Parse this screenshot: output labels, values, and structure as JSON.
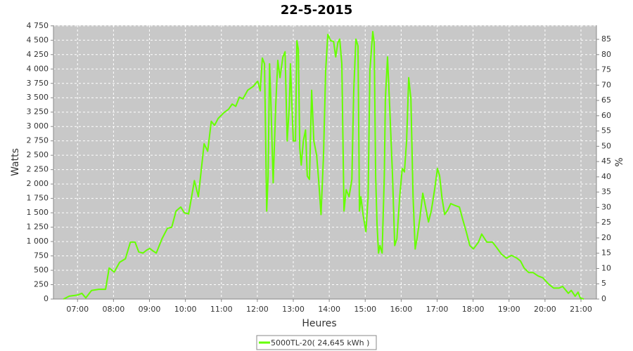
{
  "chart_data": {
    "type": "line",
    "title": "22-5-2015",
    "xlabel": "Heures",
    "ylabel": "Watts",
    "y2label": "%",
    "grid": true,
    "legend": "bottom",
    "xlim": [
      6.33,
      21.43
    ],
    "xticks": [
      {
        "value": 7,
        "label": "07:00"
      },
      {
        "value": 8,
        "label": "08:00"
      },
      {
        "value": 9,
        "label": "09:00"
      },
      {
        "value": 10,
        "label": "10:00"
      },
      {
        "value": 11,
        "label": "11:00"
      },
      {
        "value": 12,
        "label": "12:00"
      },
      {
        "value": 13,
        "label": "13:00"
      },
      {
        "value": 14,
        "label": "14:00"
      },
      {
        "value": 15,
        "label": "15:00"
      },
      {
        "value": 16,
        "label": "16:00"
      },
      {
        "value": 17,
        "label": "17:00"
      },
      {
        "value": 18,
        "label": "18:00"
      },
      {
        "value": 19,
        "label": "19:00"
      },
      {
        "value": 20,
        "label": "20:00"
      },
      {
        "value": 21,
        "label": "21:00"
      }
    ],
    "ylim": [
      0,
      4760
    ],
    "yticks": [
      0,
      250,
      500,
      750,
      {
        "value": 1000,
        "label": "1 000"
      },
      {
        "value": 1250,
        "label": "1 250"
      },
      {
        "value": 1500,
        "label": "1 500"
      },
      {
        "value": 1750,
        "label": "1 750"
      },
      {
        "value": 2000,
        "label": "2 000"
      },
      {
        "value": 2250,
        "label": "2 250"
      },
      {
        "value": 2500,
        "label": "2 500"
      },
      {
        "value": 2750,
        "label": "2 750"
      },
      {
        "value": 3000,
        "label": "3 000"
      },
      {
        "value": 3250,
        "label": "3 250"
      },
      {
        "value": 3500,
        "label": "3 500"
      },
      {
        "value": 3750,
        "label": "3 750"
      },
      {
        "value": 4000,
        "label": "4 000"
      },
      {
        "value": 4250,
        "label": "4 250"
      },
      {
        "value": 4500,
        "label": "4 500"
      },
      {
        "value": 4750,
        "label": "4 750"
      }
    ],
    "y2lim": [
      0,
      89.6
    ],
    "y2ticks": [
      0,
      5,
      10,
      15,
      20,
      25,
      30,
      35,
      40,
      45,
      50,
      55,
      60,
      65,
      70,
      75,
      80,
      85
    ],
    "x": [
      6.61,
      6.77,
      7.0,
      7.12,
      7.23,
      7.39,
      7.59,
      7.78,
      7.88,
      8.02,
      8.17,
      8.33,
      8.47,
      8.6,
      8.7,
      8.82,
      8.92,
      9.01,
      9.09,
      9.19,
      9.35,
      9.5,
      9.62,
      9.74,
      9.87,
      9.97,
      10.09,
      10.25,
      10.36,
      10.52,
      10.62,
      10.72,
      10.81,
      10.91,
      11.07,
      11.2,
      11.3,
      11.4,
      11.5,
      11.6,
      11.73,
      11.89,
      12.01,
      12.08,
      12.14,
      12.2,
      12.26,
      12.3,
      12.34,
      12.38,
      12.44,
      12.51,
      12.57,
      12.63,
      12.71,
      12.77,
      12.83,
      12.89,
      12.92,
      13.0,
      13.06,
      13.1,
      13.14,
      13.18,
      13.22,
      13.28,
      13.34,
      13.39,
      13.45,
      13.51,
      13.57,
      13.65,
      13.71,
      13.77,
      13.84,
      13.9,
      13.96,
      14.04,
      14.12,
      14.18,
      14.24,
      14.29,
      14.35,
      14.41,
      14.47,
      14.55,
      14.63,
      14.68,
      14.74,
      14.8,
      14.84,
      14.88,
      14.94,
      15.02,
      15.08,
      15.13,
      15.21,
      15.25,
      15.29,
      15.33,
      15.37,
      15.41,
      15.47,
      15.53,
      15.56,
      15.62,
      15.68,
      15.76,
      15.82,
      15.88,
      15.96,
      16.03,
      16.09,
      16.15,
      16.21,
      16.27,
      16.33,
      16.39,
      16.44,
      16.52,
      16.6,
      16.66,
      16.76,
      16.84,
      16.93,
      17.01,
      17.07,
      17.13,
      17.21,
      17.29,
      17.38,
      17.48,
      17.62,
      17.7,
      17.81,
      17.91,
      18.01,
      18.15,
      18.24,
      18.38,
      18.54,
      18.65,
      18.79,
      18.93,
      19.07,
      19.22,
      19.32,
      19.42,
      19.55,
      19.67,
      19.81,
      19.94,
      20.1,
      20.24,
      20.39,
      20.49,
      20.65,
      20.73,
      20.84,
      20.92,
      20.98,
      21.08
    ],
    "series": [
      {
        "name": "5000TL-20( 24,645 kWh )",
        "color": "#66ff00",
        "values": [
          0,
          50,
          70,
          100,
          20,
          150,
          170,
          170,
          540,
          470,
          640,
          700,
          990,
          990,
          820,
          800,
          850,
          880,
          840,
          800,
          1050,
          1230,
          1250,
          1530,
          1600,
          1500,
          1480,
          2060,
          1780,
          2700,
          2570,
          3090,
          3020,
          3140,
          3240,
          3300,
          3390,
          3350,
          3510,
          3480,
          3630,
          3700,
          3790,
          3620,
          4190,
          4090,
          1530,
          2140,
          4090,
          3360,
          2020,
          3360,
          4150,
          3850,
          4210,
          4300,
          2750,
          3360,
          4090,
          2750,
          2750,
          4490,
          4340,
          2630,
          2330,
          2750,
          2940,
          2140,
          2080,
          3630,
          2750,
          2500,
          2030,
          1470,
          2500,
          3970,
          4600,
          4490,
          4480,
          4210,
          4460,
          4520,
          4090,
          1530,
          1900,
          1780,
          2080,
          3610,
          4520,
          4400,
          1530,
          1780,
          1470,
          1170,
          1780,
          3970,
          4650,
          4460,
          2140,
          1290,
          800,
          930,
          800,
          2140,
          3480,
          4210,
          3360,
          2140,
          930,
          1050,
          1780,
          2270,
          2210,
          2750,
          3850,
          3480,
          1780,
          870,
          1050,
          1410,
          1840,
          1660,
          1340,
          1540,
          1900,
          2270,
          2140,
          1780,
          1470,
          1540,
          1660,
          1630,
          1600,
          1410,
          1170,
          930,
          870,
          990,
          1130,
          990,
          990,
          900,
          780,
          710,
          760,
          710,
          660,
          540,
          460,
          460,
          400,
          370,
          260,
          190,
          190,
          220,
          100,
          150,
          50,
          120,
          20,
          0
        ]
      }
    ]
  }
}
